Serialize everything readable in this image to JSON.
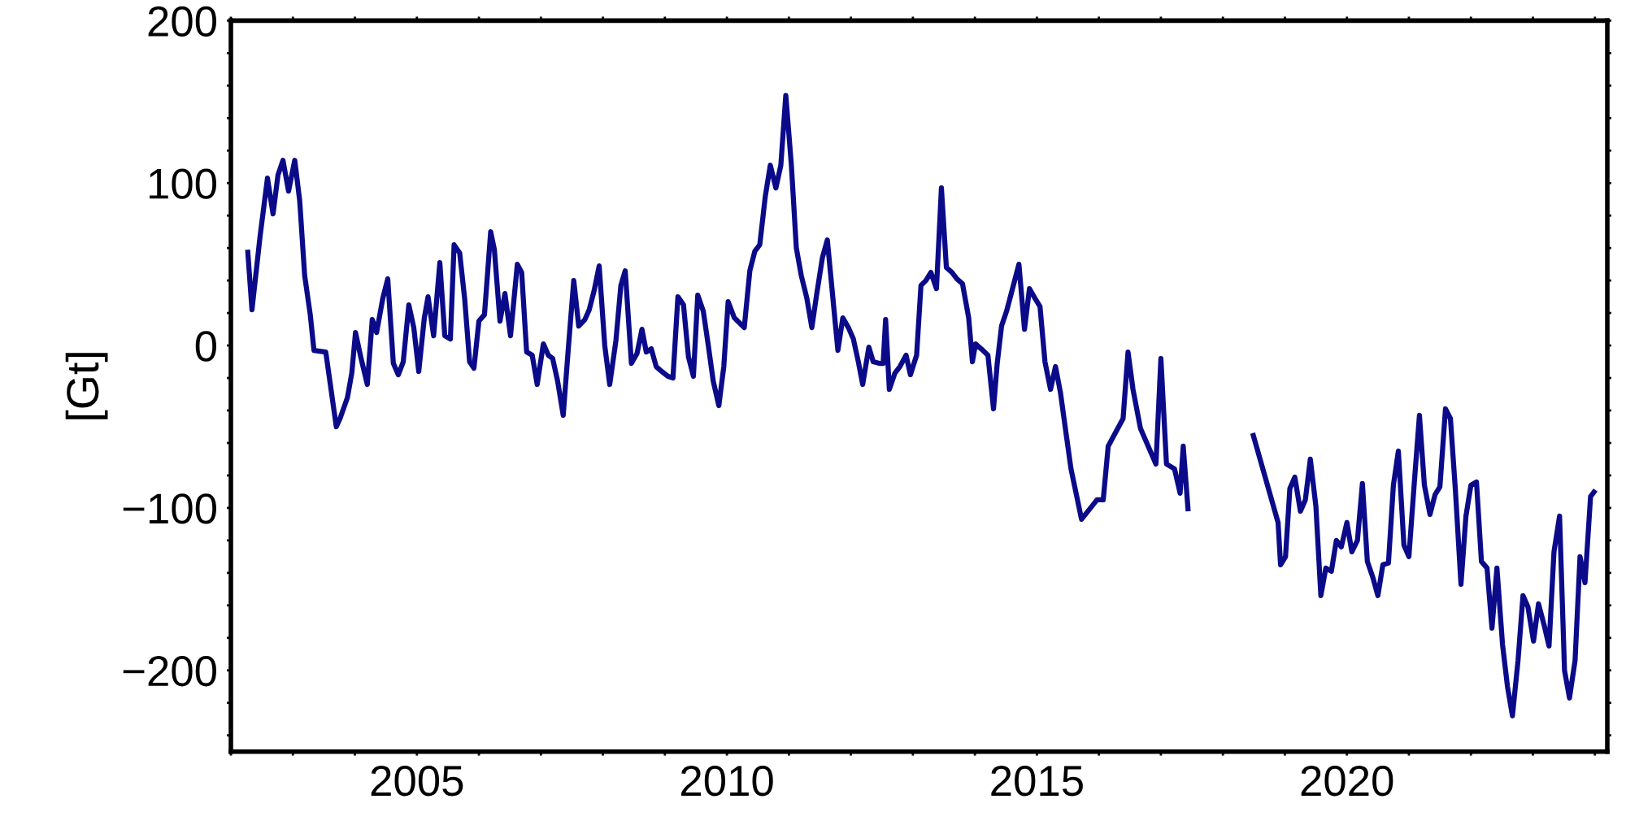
{
  "chart_data": {
    "type": "line",
    "ylabel": "[Gt]",
    "xlim": [
      2002,
      2024.2
    ],
    "ylim": [
      -250,
      200
    ],
    "xticks": [
      {
        "value": 2002,
        "label": null
      },
      {
        "value": 2003,
        "label": null
      },
      {
        "value": 2004,
        "label": null
      },
      2005,
      {
        "value": 2006,
        "label": null
      },
      {
        "value": 2007,
        "label": null
      },
      {
        "value": 2008,
        "label": null
      },
      {
        "value": 2009,
        "label": null
      },
      2010,
      {
        "value": 2011,
        "label": null
      },
      {
        "value": 2012,
        "label": null
      },
      {
        "value": 2013,
        "label": null
      },
      {
        "value": 2014,
        "label": null
      },
      2015,
      {
        "value": 2016,
        "label": null
      },
      {
        "value": 2017,
        "label": null
      },
      {
        "value": 2018,
        "label": null
      },
      {
        "value": 2019,
        "label": null
      },
      2020,
      {
        "value": 2021,
        "label": null
      },
      {
        "value": 2022,
        "label": null
      },
      {
        "value": 2023,
        "label": null
      },
      {
        "value": 2024,
        "label": null
      }
    ],
    "yticks": [
      {
        "value": -240,
        "label": null
      },
      {
        "value": -220,
        "label": null
      },
      {
        "value": -200,
        "label": "−200"
      },
      {
        "value": -180,
        "label": null
      },
      {
        "value": -160,
        "label": null
      },
      {
        "value": -140,
        "label": null
      },
      {
        "value": -120,
        "label": null
      },
      {
        "value": -100,
        "label": "−100"
      },
      {
        "value": -80,
        "label": null
      },
      {
        "value": -60,
        "label": null
      },
      {
        "value": -40,
        "label": null
      },
      {
        "value": -20,
        "label": null
      },
      0,
      {
        "value": 20,
        "label": null
      },
      {
        "value": 40,
        "label": null
      },
      {
        "value": 60,
        "label": null
      },
      {
        "value": 80,
        "label": null
      },
      100,
      {
        "value": 120,
        "label": null
      },
      {
        "value": 140,
        "label": null
      },
      {
        "value": 160,
        "label": null
      },
      {
        "value": 180,
        "label": null
      },
      200
    ],
    "grid": false,
    "legend": false,
    "marker": "none",
    "line_style": "solid",
    "series": [
      {
        "color": "#0b0b8a",
        "x": [
          2002.27,
          2002.34,
          2002.47,
          2002.59,
          2002.68,
          2002.76,
          2002.84,
          2002.93,
          2003.03,
          2003.11,
          2003.19,
          2003.28,
          2003.34,
          2003.53,
          2003.7,
          2003.76,
          2003.88,
          2003.95,
          2004.01,
          2004.1,
          2004.2,
          2004.28,
          2004.35,
          2004.45,
          2004.53,
          2004.62,
          2004.7,
          2004.78,
          2004.87,
          2004.95,
          2005.03,
          2005.12,
          2005.18,
          2005.27,
          2005.37,
          2005.45,
          2005.54,
          2005.6,
          2005.69,
          2005.77,
          2005.85,
          2005.92,
          2006.0,
          2006.09,
          2006.19,
          2006.25,
          2006.34,
          2006.42,
          2006.51,
          2006.62,
          2006.69,
          2006.77,
          2006.86,
          2006.94,
          2007.04,
          2007.12,
          2007.19,
          2007.27,
          2007.36,
          2007.44,
          2007.53,
          2007.61,
          2007.71,
          2007.78,
          2007.86,
          2007.94,
          2008.03,
          2008.11,
          2008.21,
          2008.29,
          2008.36,
          2008.46,
          2008.55,
          2008.63,
          2008.7,
          2008.78,
          2008.86,
          2008.95,
          2009.05,
          2009.13,
          2009.21,
          2009.3,
          2009.38,
          2009.46,
          2009.53,
          2009.62,
          2009.7,
          2009.78,
          2009.87,
          2009.95,
          2010.02,
          2010.12,
          2010.2,
          2010.28,
          2010.37,
          2010.45,
          2010.53,
          2010.62,
          2010.7,
          2010.79,
          2010.87,
          2010.95,
          2011.04,
          2011.12,
          2011.2,
          2011.29,
          2011.37,
          2011.45,
          2011.54,
          2011.62,
          2011.71,
          2011.79,
          2011.87,
          2011.96,
          2012.04,
          2012.12,
          2012.19,
          2012.29,
          2012.36,
          2012.46,
          2012.52,
          2012.56,
          2012.62,
          2012.71,
          2012.79,
          2012.89,
          2012.96,
          2013.06,
          2013.13,
          2013.21,
          2013.29,
          2013.38,
          2013.46,
          2013.54,
          2013.63,
          2013.71,
          2013.8,
          2013.9,
          2013.96,
          2014.01,
          2014.1,
          2014.21,
          2014.3,
          2014.36,
          2014.43,
          2014.51,
          2014.6,
          2014.71,
          2014.8,
          2014.88,
          2014.97,
          2015.05,
          2015.13,
          2015.22,
          2015.3,
          2015.38,
          2015.47,
          2015.55,
          2015.72,
          2015.97,
          2016.07,
          2016.15,
          2016.22,
          2016.39,
          2016.47,
          2016.55,
          2016.67,
          2016.92,
          2017.0,
          2017.09,
          2017.22,
          2017.31,
          2017.36,
          2017.44,
          2017.9,
          2018.48,
          2018.89,
          2018.93,
          2019.01,
          2019.08,
          2019.16,
          2019.25,
          2019.33,
          2019.41,
          2019.5,
          2019.58,
          2019.66,
          2019.75,
          2019.83,
          2019.91,
          2020.0,
          2020.08,
          2020.17,
          2020.25,
          2020.33,
          2020.42,
          2020.5,
          2020.58,
          2020.67,
          2020.75,
          2020.83,
          2020.92,
          2021.0,
          2021.09,
          2021.17,
          2021.25,
          2021.34,
          2021.42,
          2021.5,
          2021.59,
          2021.67,
          2021.75,
          2021.84,
          2021.92,
          2022.0,
          2022.09,
          2022.17,
          2022.26,
          2022.34,
          2022.42,
          2022.51,
          2022.59,
          2022.67,
          2022.76,
          2022.84,
          2022.92,
          2023.01,
          2023.09,
          2023.18,
          2023.26,
          2023.34,
          2023.43,
          2023.51,
          2023.59,
          2023.68,
          2023.76,
          2023.84,
          2023.93,
          2024.01
        ],
        "values": [
          59,
          22,
          67,
          103,
          81,
          105,
          114,
          95,
          114,
          89,
          43,
          19,
          -3,
          -4,
          -50,
          -45,
          -32,
          -17,
          8,
          -8,
          -24,
          16,
          8,
          29,
          41,
          -11,
          -18,
          -10,
          25,
          11,
          -16,
          17,
          30,
          6,
          51,
          6,
          4,
          62,
          57,
          29,
          -10,
          -14,
          15,
          19,
          70,
          59,
          15,
          32,
          6,
          50,
          45,
          -4,
          -6,
          -24,
          1,
          -6,
          -8,
          -22,
          -43,
          -3,
          40,
          12,
          16,
          22,
          34,
          49,
          0,
          -24,
          3,
          37,
          46,
          -11,
          -5,
          10,
          -4,
          -2,
          -13,
          -16,
          -19,
          -20,
          30,
          25,
          -7,
          -19,
          31,
          21,
          0,
          -22,
          -37,
          -13,
          27,
          17,
          14,
          11,
          46,
          58,
          62,
          92,
          111,
          97,
          111,
          154,
          111,
          60,
          43,
          29,
          11,
          32,
          54,
          65,
          29,
          -3,
          17,
          11,
          4,
          -10,
          -24,
          -1,
          -10,
          -11,
          -11,
          16,
          -27,
          -17,
          -13,
          -6,
          -18,
          -6,
          37,
          40,
          45,
          35,
          97,
          48,
          45,
          41,
          38,
          17,
          -10,
          1,
          -2,
          -6,
          -39,
          -11,
          12,
          21,
          34,
          50,
          10,
          35,
          29,
          24,
          -10,
          -27,
          -13,
          -29,
          -54,
          -76,
          -107,
          -95,
          -95,
          -62,
          -57,
          -45,
          -4,
          -27,
          -51,
          -73,
          -8,
          -73,
          -76,
          -91,
          -62,
          -102,
          null,
          -54,
          -109,
          -135,
          -130,
          -88,
          -81,
          -102,
          -95,
          -70,
          -99,
          -154,
          -137,
          -139,
          -120,
          -124,
          -109,
          -127,
          -120,
          -85,
          -133,
          -143,
          -154,
          -135,
          -134,
          -86,
          -65,
          -123,
          -130,
          -83,
          -43,
          -86,
          -104,
          -92,
          -87,
          -39,
          -45,
          -89,
          -147,
          -105,
          -86,
          -84,
          -133,
          -137,
          -174,
          -137,
          -184,
          -210,
          -228,
          -194,
          -154,
          -161,
          -182,
          -159,
          -172,
          -185,
          -127,
          -105,
          -200,
          -217,
          -194,
          -130,
          -146,
          -93,
          -89
        ]
      }
    ]
  }
}
